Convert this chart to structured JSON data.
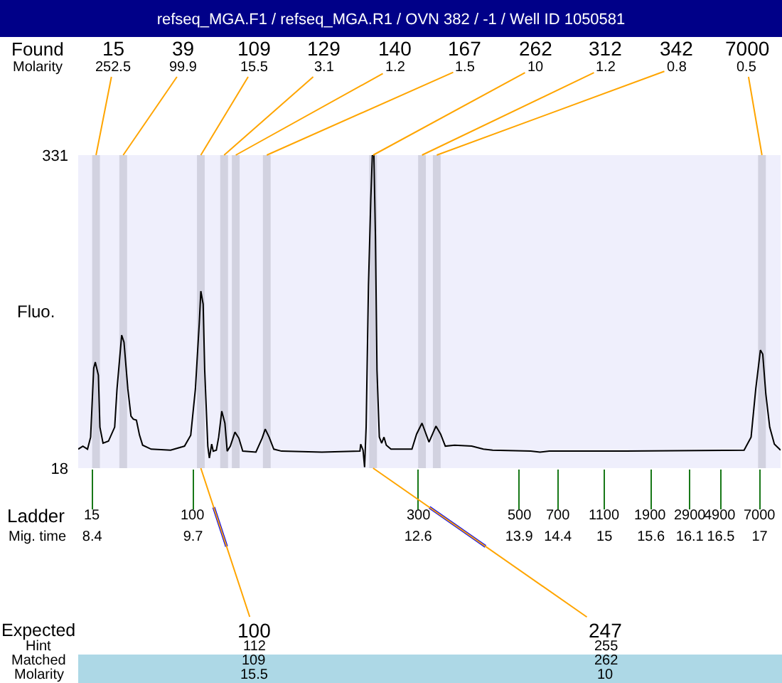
{
  "chart_data": {
    "type": "line",
    "title": "refseq_MGA.F1 / refseq_MGA.R1 / OVN 382 / -1 / Well ID 1050581",
    "ylabel": "Fluo.",
    "xlabel": "Mig. time",
    "xlim": [
      8.22,
      17.27
    ],
    "xticks": [
      8.4,
      9.7,
      12.6,
      13.9,
      14.4,
      15,
      15.6,
      16.1,
      16.5,
      17
    ],
    "ylim": [
      18,
      331
    ],
    "yticks": [
      18,
      331
    ],
    "color": "#000000",
    "x": [
      8.22,
      8.28,
      8.34,
      8.38,
      8.42,
      8.44,
      8.48,
      8.5,
      8.54,
      8.61,
      8.69,
      8.72,
      8.78,
      8.81,
      8.86,
      8.9,
      8.93,
      8.97,
      9.01,
      9.05,
      9.16,
      9.41,
      9.59,
      9.67,
      9.73,
      9.78,
      9.8,
      9.83,
      9.85,
      9.89,
      9.91,
      9.94,
      9.96,
      10.0,
      10.03,
      10.07,
      10.11,
      10.14,
      10.18,
      10.24,
      10.29,
      10.34,
      10.51,
      10.59,
      10.63,
      10.68,
      10.74,
      10.84,
      11.36,
      11.85,
      11.86,
      11.89,
      11.91,
      11.93,
      11.96,
      11.99,
      12.01,
      12.03,
      12.05,
      12.07,
      12.1,
      12.13,
      12.16,
      12.19,
      12.25,
      12.52,
      12.58,
      12.65,
      12.74,
      12.83,
      12.89,
      12.95,
      13.07,
      13.29,
      13.44,
      13.56,
      14.05,
      14.17,
      14.29,
      15.27,
      16.8,
      16.89,
      16.95,
      17.01,
      17.04,
      17.08,
      17.13,
      17.19,
      17.27
    ],
    "values": [
      37,
      40,
      37,
      49,
      118,
      124,
      111,
      59,
      43,
      45,
      59,
      97,
      151,
      144,
      97,
      70,
      67,
      66,
      51,
      41,
      37,
      36,
      40,
      51,
      97,
      163,
      195,
      182,
      116,
      40,
      28,
      42,
      35,
      36,
      49,
      75,
      63,
      35,
      40,
      54,
      48,
      35,
      34,
      48,
      57,
      49,
      37,
      35,
      34,
      35,
      42,
      36,
      19,
      59,
      201,
      287,
      331,
      331,
      249,
      116,
      49,
      43,
      49,
      41,
      37,
      37,
      52,
      63,
      44,
      60,
      52,
      40,
      41,
      40,
      37,
      36,
      35,
      34,
      35,
      35,
      36,
      49,
      97,
      136,
      132,
      92,
      59,
      42,
      36
    ],
    "bands": [
      {
        "axis": "x",
        "from": 8.4,
        "to": 8.5,
        "color": "#d2d2e0"
      },
      {
        "axis": "x",
        "from": 8.75,
        "to": 8.85,
        "color": "#d2d2e0"
      },
      {
        "axis": "x",
        "from": 9.75,
        "to": 9.85,
        "color": "#d2d2e0"
      },
      {
        "axis": "x",
        "from": 10.05,
        "to": 10.15,
        "color": "#d2d2e0"
      },
      {
        "axis": "x",
        "from": 10.2,
        "to": 10.3,
        "color": "#d2d2e0"
      },
      {
        "axis": "x",
        "from": 10.6,
        "to": 10.7,
        "color": "#d2d2e0"
      },
      {
        "axis": "x",
        "from": 11.97,
        "to": 12.07,
        "color": "#d2d2e0"
      },
      {
        "axis": "x",
        "from": 12.6,
        "to": 12.7,
        "color": "#d2d2e0"
      },
      {
        "axis": "x",
        "from": 12.79,
        "to": 12.89,
        "color": "#d2d2e0"
      },
      {
        "axis": "x",
        "from": 16.98,
        "to": 17.08,
        "color": "#d2d2e0"
      }
    ],
    "annotations": [
      "Found\nMolarity",
      {
        "text": "15\n252.5",
        "x": 8.45,
        "y": 331
      },
      {
        "text": "39\n99.9",
        "x": 8.8,
        "y": 331
      },
      {
        "text": "109\n15.5",
        "x": 9.8,
        "y": 331
      },
      {
        "text": "129\n3.1",
        "x": 10.1,
        "y": 331
      },
      {
        "text": "140\n1.2",
        "x": 10.25,
        "y": 331
      },
      {
        "text": "167\n1.5",
        "x": 10.65,
        "y": 331
      },
      {
        "text": "262\n10",
        "x": 12.02,
        "y": 331
      },
      {
        "text": "312\n1.2",
        "x": 12.65,
        "y": 331
      },
      {
        "text": "342\n0.8",
        "x": 12.84,
        "y": 331
      },
      {
        "text": "7000\n0.5",
        "x": 17.03,
        "y": 331
      },
      "Ladder",
      "15",
      "100",
      "300",
      "500",
      "700",
      "1100",
      "1900",
      "2900",
      "4900",
      "7000",
      "Expected\nHint\nMatched\nMolarity",
      {
        "text": "100\n112\n109\n15.5",
        "x": 9.8,
        "y": 18
      },
      {
        "text": "247\n255\n262\n10",
        "x": 12.02,
        "y": 18
      }
    ]
  }
}
